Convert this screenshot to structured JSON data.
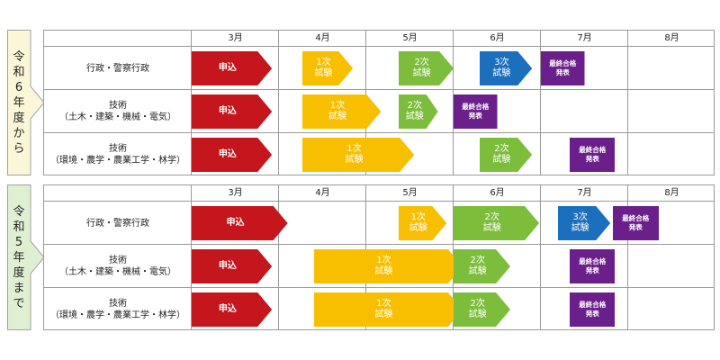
{
  "colors": {
    "apply": "#c4161c",
    "stage1": "#f8bf00",
    "stage2": "#7cbd3c",
    "stage3": "#1b6fbd",
    "final": "#6b1f8a",
    "side_fill": "#fbf6d8",
    "side_stroke": "#a0a0a0"
  },
  "months": [
    "3月",
    "4月",
    "5月",
    "6月",
    "7月",
    "8月"
  ],
  "tables": [
    {
      "side_label": [
        "令",
        "和",
        "6",
        "年",
        "度",
        "か",
        "ら"
      ],
      "side_fill": "#fbf6d8",
      "rows": [
        {
          "label": [
            "行政・警察行政"
          ],
          "bars": [
            {
              "kind": "apply",
              "label": [
                "申込"
              ],
              "start": 3.0,
              "end": 3.92,
              "arrow": true
            },
            {
              "kind": "stage1",
              "label": [
                "1次",
                "試験"
              ],
              "start": 4.27,
              "end": 4.85,
              "arrow": true
            },
            {
              "kind": "stage2",
              "label": [
                "2次",
                "試験"
              ],
              "start": 5.37,
              "end": 6.0,
              "arrow": true
            },
            {
              "kind": "stage3",
              "label": [
                "3次",
                "試験"
              ],
              "start": 6.3,
              "end": 6.9,
              "arrow": true
            },
            {
              "kind": "final",
              "label": [
                "最終合格",
                "発表"
              ],
              "start": 7.0,
              "end": 7.5,
              "arrow": false
            }
          ]
        },
        {
          "label": [
            "技術",
            "（土木・建築・機械・電気）"
          ],
          "bars": [
            {
              "kind": "apply",
              "label": [
                "申込"
              ],
              "start": 3.0,
              "end": 3.92,
              "arrow": true
            },
            {
              "kind": "stage1",
              "label": [
                "1次",
                "試験"
              ],
              "start": 4.27,
              "end": 5.17,
              "arrow": true
            },
            {
              "kind": "stage2",
              "label": [
                "2次",
                "試験"
              ],
              "start": 5.37,
              "end": 5.82,
              "arrow": true
            },
            {
              "kind": "final",
              "label": [
                "最終合格",
                "発表"
              ],
              "start": 6.0,
              "end": 6.5,
              "arrow": false
            }
          ]
        },
        {
          "label": [
            "技術",
            "（環境・農学・農業工学・林学）"
          ],
          "bars": [
            {
              "kind": "apply",
              "label": [
                "申込"
              ],
              "start": 3.0,
              "end": 3.92,
              "arrow": true
            },
            {
              "kind": "stage1",
              "label": [
                "1次",
                "試験"
              ],
              "start": 4.27,
              "end": 5.55,
              "arrow": true
            },
            {
              "kind": "stage2",
              "label": [
                "2次",
                "試験"
              ],
              "start": 6.3,
              "end": 6.9,
              "arrow": true
            },
            {
              "kind": "final",
              "label": [
                "最終合格",
                "発表"
              ],
              "start": 7.33,
              "end": 7.85,
              "arrow": false
            }
          ]
        }
      ]
    },
    {
      "side_label": [
        "令",
        "和",
        "5",
        "年",
        "度",
        "ま",
        "で"
      ],
      "side_fill": "#dff0d2",
      "rows": [
        {
          "label": [
            "行政・警察行政"
          ],
          "bars": [
            {
              "kind": "apply",
              "label": [
                "申込"
              ],
              "start": 3.0,
              "end": 4.1,
              "arrow": true
            },
            {
              "kind": "stage1",
              "label": [
                "1次",
                "試験"
              ],
              "start": 5.37,
              "end": 5.92,
              "arrow": true
            },
            {
              "kind": "stage2",
              "label": [
                "2次",
                "試験"
              ],
              "start": 6.0,
              "end": 6.98,
              "arrow": true
            },
            {
              "kind": "stage3",
              "label": [
                "3次",
                "試験"
              ],
              "start": 7.2,
              "end": 7.8,
              "arrow": true
            },
            {
              "kind": "final",
              "label": [
                "最終合格",
                "発表"
              ],
              "start": 7.82,
              "end": 8.35,
              "arrow": false
            }
          ]
        },
        {
          "label": [
            "技術",
            "（土木・建築・機械・電気）"
          ],
          "bars": [
            {
              "kind": "apply",
              "label": [
                "申込"
              ],
              "start": 3.0,
              "end": 3.92,
              "arrow": true
            },
            {
              "kind": "stage1",
              "label": [
                "1次",
                "試験"
              ],
              "start": 4.4,
              "end": 6.1,
              "arrow": true
            },
            {
              "kind": "stage2",
              "label": [
                "2次",
                "試験"
              ],
              "start": 6.0,
              "end": 6.65,
              "arrow": true
            },
            {
              "kind": "final",
              "label": [
                "最終合格",
                "発表"
              ],
              "start": 7.33,
              "end": 7.85,
              "arrow": false
            }
          ]
        },
        {
          "label": [
            "技術",
            "（環境・農学・農業工学・林学）"
          ],
          "bars": [
            {
              "kind": "apply",
              "label": [
                "申込"
              ],
              "start": 3.0,
              "end": 3.92,
              "arrow": true
            },
            {
              "kind": "stage1",
              "label": [
                "1次",
                "試験"
              ],
              "start": 4.4,
              "end": 6.1,
              "arrow": true
            },
            {
              "kind": "stage2",
              "label": [
                "2次",
                "試験"
              ],
              "start": 6.0,
              "end": 6.65,
              "arrow": true
            },
            {
              "kind": "final",
              "label": [
                "最終合格",
                "発表"
              ],
              "start": 7.33,
              "end": 7.85,
              "arrow": false
            }
          ]
        }
      ]
    }
  ]
}
